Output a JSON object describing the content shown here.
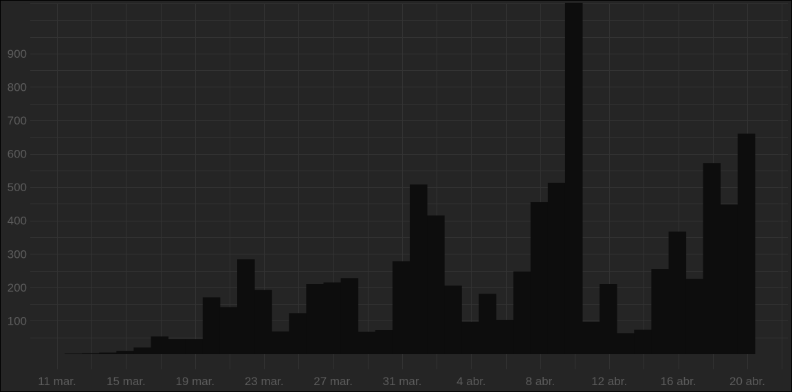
{
  "chart_data": {
    "type": "bar",
    "title": "",
    "xlabel": "",
    "ylabel": "",
    "ylim": [
      0,
      1050
    ],
    "yticks": [
      100,
      200,
      300,
      400,
      500,
      600,
      700,
      800,
      900
    ],
    "xticks": [
      "11 mar.",
      "15 mar.",
      "19 mar.",
      "23 mar.",
      "27 mar.",
      "31 mar.",
      "4 abr.",
      "8 abr.",
      "12 abr.",
      "16 abr.",
      "20 abr."
    ],
    "grid": true,
    "legend": "none",
    "categories": [
      "12 mar.",
      "13 mar.",
      "14 mar.",
      "15 mar.",
      "16 mar.",
      "17 mar.",
      "18 mar.",
      "19 mar.",
      "20 mar.",
      "21 mar.",
      "22 mar.",
      "23 mar.",
      "24 mar.",
      "25 mar.",
      "26 mar.",
      "27 mar.",
      "28 mar.",
      "29 mar.",
      "30 mar.",
      "31 mar.",
      "1 abr.",
      "2 abr.",
      "3 abr.",
      "4 abr.",
      "5 abr.",
      "6 abr.",
      "7 abr.",
      "8 abr.",
      "9 abr.",
      "10 abr.",
      "11 abr.",
      "12 abr.",
      "13 abr.",
      "14 abr.",
      "15 abr.",
      "16 abr.",
      "17 abr.",
      "18 abr.",
      "19 abr.",
      "20 abr."
    ],
    "values": [
      2,
      3,
      5,
      10,
      20,
      53,
      45,
      45,
      170,
      141,
      284,
      192,
      68,
      123,
      210,
      215,
      228,
      67,
      72,
      278,
      508,
      415,
      205,
      97,
      181,
      103,
      248,
      455,
      513,
      1052,
      97,
      210,
      63,
      73,
      255,
      367,
      225,
      572,
      448,
      660
    ],
    "colors": {
      "background": "#252525",
      "bar": "#0d0d0d",
      "grid": "#333333",
      "text": "#5c5c5c"
    }
  }
}
